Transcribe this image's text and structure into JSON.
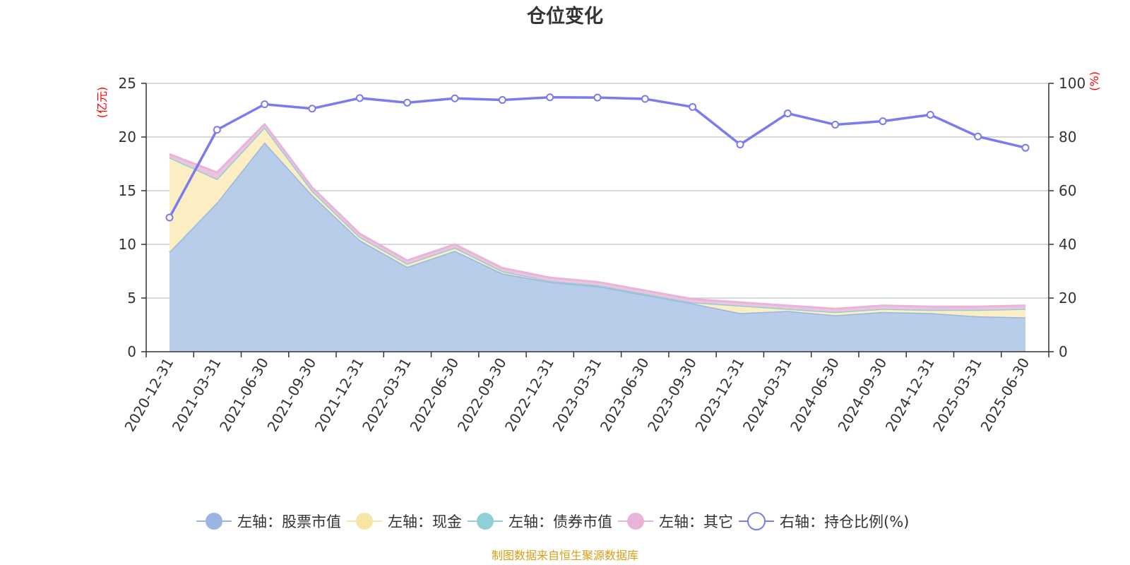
{
  "chart_data": {
    "type": "area",
    "title": "仓位变化",
    "left_axis_unit": "(亿元)",
    "right_axis_unit": "(%)",
    "categories": [
      "2020-12-31",
      "2021-03-31",
      "2021-06-30",
      "2021-09-30",
      "2021-12-31",
      "2022-03-31",
      "2022-06-30",
      "2022-09-30",
      "2022-12-31",
      "2023-03-31",
      "2023-06-30",
      "2023-09-30",
      "2023-12-31",
      "2024-03-31",
      "2024-06-30",
      "2024-09-30",
      "2024-12-31",
      "2025-03-31",
      "2025-06-30"
    ],
    "left_ylim": [
      0,
      25
    ],
    "left_yticks": [
      0,
      5,
      10,
      15,
      20,
      25
    ],
    "right_ylim": [
      0,
      100
    ],
    "right_yticks": [
      0,
      20,
      40,
      60,
      80,
      100
    ],
    "series": [
      {
        "name": "左轴：股票市值",
        "axis": "left",
        "kind": "stacked-area",
        "color": "#9bb5e0",
        "fill": "#b7cdea",
        "values": [
          9.3,
          13.9,
          19.5,
          14.6,
          10.4,
          7.9,
          9.4,
          7.3,
          6.5,
          6.1,
          5.3,
          4.5,
          3.6,
          3.8,
          3.4,
          3.7,
          3.6,
          3.3,
          3.2
        ]
      },
      {
        "name": "左轴：现金",
        "axis": "left",
        "kind": "stacked-area",
        "color": "#f7e6a3",
        "fill": "#fbeec2",
        "values": [
          8.8,
          2.2,
          1.4,
          0.4,
          0.3,
          0.3,
          0.3,
          0.2,
          0.1,
          0.1,
          0.1,
          0.1,
          0.7,
          0.2,
          0.3,
          0.3,
          0.3,
          0.6,
          0.8
        ]
      },
      {
        "name": "左轴：债券市值",
        "axis": "left",
        "kind": "stacked-area",
        "color": "#8fd0d6",
        "fill": "#a8dde2",
        "values": [
          0,
          0,
          0,
          0,
          0,
          0,
          0,
          0,
          0,
          0,
          0,
          0,
          0,
          0,
          0,
          0,
          0,
          0,
          0
        ]
      },
      {
        "name": "左轴：其它",
        "axis": "left",
        "kind": "stacked-area",
        "color": "#e8b4d8",
        "fill": "#eec3e0",
        "values": [
          0.3,
          0.6,
          0.3,
          0.3,
          0.3,
          0.3,
          0.3,
          0.3,
          0.3,
          0.3,
          0.3,
          0.3,
          0.3,
          0.3,
          0.3,
          0.3,
          0.3,
          0.3,
          0.3
        ]
      },
      {
        "name": "右轴：持仓比例(%)",
        "axis": "right",
        "kind": "line",
        "color": "#7b7bf0",
        "values": [
          50.0,
          82.7,
          92.2,
          90.6,
          94.5,
          92.8,
          94.4,
          93.8,
          94.8,
          94.7,
          94.2,
          91.2,
          77.2,
          88.8,
          84.6,
          85.9,
          88.3,
          80.2,
          76.0
        ]
      }
    ]
  },
  "footer": {
    "source": "制图数据来自恒生聚源数据库"
  }
}
